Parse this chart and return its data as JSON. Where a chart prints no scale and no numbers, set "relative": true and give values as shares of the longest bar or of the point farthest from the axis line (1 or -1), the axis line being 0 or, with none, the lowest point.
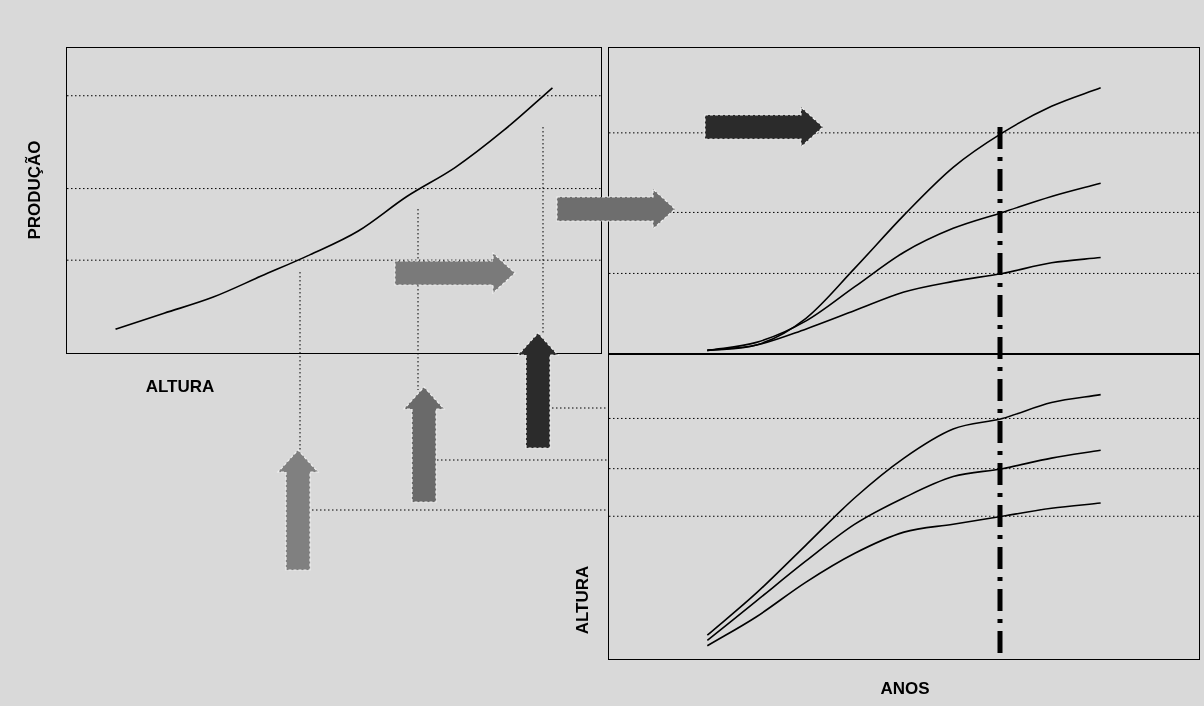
{
  "chart_data": [
    {
      "type": "line",
      "ylabel": "PRODUÇÃO",
      "xlabel": "ALTURA",
      "relative": true,
      "marker": "none",
      "categories": [
        null,
        null,
        null,
        null,
        null,
        null,
        null,
        null,
        null,
        null,
        null,
        null
      ],
      "series": [
        {
          "color": "#000000",
          "values": [
            null,
            0.09,
            0.15,
            0.21,
            0.29,
            0.37,
            0.46,
            0.59,
            0.7,
            0.84,
            1,
            null
          ]
        }
      ],
      "ref_lines": [
        {
          "axis": "y",
          "value": 0.35,
          "color": "#000000",
          "line_style": "dotted"
        },
        {
          "axis": "y",
          "value": 0.62,
          "color": "#000000",
          "line_style": "dotted"
        },
        {
          "axis": "y",
          "value": 0.97,
          "color": "#000000",
          "line_style": "dotted"
        }
      ]
    },
    {
      "type": "line",
      "relative": true,
      "marker": "none",
      "categories": [
        null,
        null,
        null,
        null,
        null,
        null,
        null,
        null,
        null,
        null,
        null,
        null,
        null
      ],
      "series": [
        {
          "color": "#000000",
          "values": [
            null,
            null,
            0.01,
            0.03,
            0.13,
            0.32,
            0.52,
            0.7,
            0.83,
            0.93,
            1,
            null,
            null
          ]
        },
        {
          "color": "#000000",
          "values": [
            null,
            null,
            0.01,
            0.04,
            0.12,
            0.25,
            0.38,
            0.47,
            0.53,
            0.59,
            0.64,
            null,
            null
          ]
        },
        {
          "color": "#000000",
          "values": [
            null,
            null,
            0.01,
            0.03,
            0.09,
            0.16,
            0.23,
            0.27,
            0.3,
            0.34,
            0.36,
            null,
            null
          ]
        }
      ],
      "ref_lines": [
        {
          "axis": "y",
          "value": 0.3,
          "color": "#000000",
          "line_style": "dotted"
        },
        {
          "axis": "y",
          "value": 0.53,
          "color": "#000000",
          "line_style": "dotted"
        },
        {
          "axis": "y",
          "value": 0.83,
          "color": "#000000",
          "line_style": "dotted"
        }
      ]
    },
    {
      "type": "line",
      "ylabel": "ALTURA",
      "xlabel": "ANOS",
      "relative": true,
      "marker": "none",
      "categories": [
        null,
        null,
        null,
        null,
        null,
        null,
        null,
        null,
        null,
        null,
        null,
        null,
        null
      ],
      "series": [
        {
          "color": "#000000",
          "values": [
            null,
            null,
            0.09,
            0.25,
            0.43,
            0.61,
            0.76,
            0.87,
            0.91,
            0.97,
            1,
            null,
            null
          ]
        },
        {
          "color": "#000000",
          "values": [
            null,
            null,
            0.07,
            0.22,
            0.37,
            0.51,
            0.61,
            0.69,
            0.72,
            0.76,
            0.79,
            null,
            null
          ]
        },
        {
          "color": "#000000",
          "values": [
            null,
            null,
            0.05,
            0.16,
            0.29,
            0.4,
            0.48,
            0.51,
            0.54,
            0.57,
            0.59,
            null,
            null
          ]
        }
      ],
      "ref_lines": [
        {
          "axis": "y",
          "value": 0.54,
          "color": "#000000",
          "line_style": "dotted"
        },
        {
          "axis": "y",
          "value": 0.72,
          "color": "#000000",
          "line_style": "dotted"
        },
        {
          "axis": "y",
          "value": 0.91,
          "color": "#000000",
          "line_style": "dotted"
        }
      ]
    }
  ]
}
